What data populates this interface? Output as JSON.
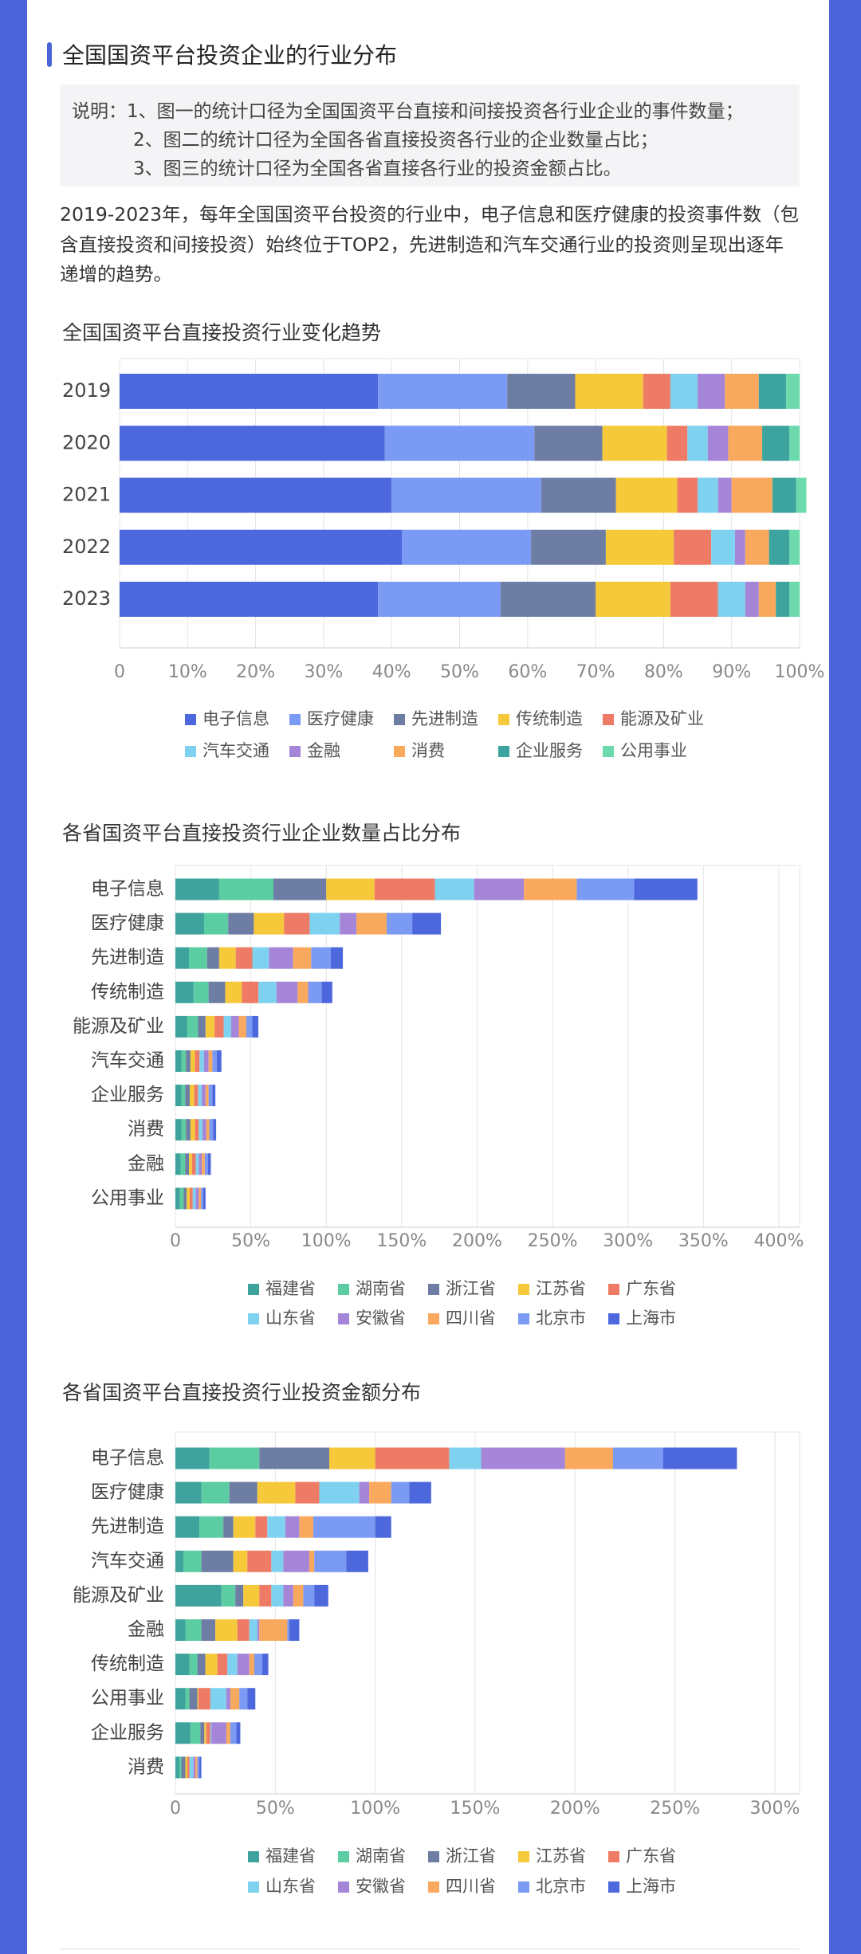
{
  "header": {
    "title": "全国国资平台投资企业的行业分布"
  },
  "notes": [
    "说明：1、图一的统计口径为全国国资平台直接和间接投资各行业企业的事件数量；",
    "2、图二的统计口径为全国各省直接投资各行业的企业数量占比；",
    "3、图三的统计口径为全国各省直接各行业的投资金额占比。"
  ],
  "paragraph": "2019-2023年，每年全国国资平台投资的行业中，电子信息和医疗健康的投资事件数（包含直接投资和间接投资）始终位于TOP2，先进制造和汽车交通行业的投资则呈现出逐年递增的趋势。",
  "chart_data": [
    {
      "type": "bar",
      "orientation": "horizontal",
      "stacked": true,
      "grid": true,
      "title": "全国国资平台直接投资行业变化趋势",
      "categories": [
        "2019",
        "2020",
        "2021",
        "2022",
        "2023"
      ],
      "series": [
        {
          "name": "电子信息",
          "color": "#4d67dc",
          "values": [
            38,
            39,
            40,
            41.5,
            38
          ]
        },
        {
          "name": "医疗健康",
          "color": "#7b9af4",
          "values": [
            19,
            22,
            22,
            19,
            18
          ]
        },
        {
          "name": "先进制造",
          "color": "#6d7da3",
          "values": [
            10,
            10,
            11,
            11,
            14
          ]
        },
        {
          "name": "传统制造",
          "color": "#f6c93a",
          "values": [
            10,
            9.5,
            9,
            10,
            11
          ]
        },
        {
          "name": "能源及矿业",
          "color": "#ee7b66",
          "values": [
            4,
            3,
            3,
            5.5,
            7
          ]
        },
        {
          "name": "汽车交通",
          "color": "#7fd2ef",
          "values": [
            4,
            3,
            3,
            3.5,
            4
          ]
        },
        {
          "name": "金融",
          "color": "#a585d8",
          "values": [
            4,
            3,
            2,
            1.5,
            2
          ]
        },
        {
          "name": "消费",
          "color": "#f9a95e",
          "values": [
            5,
            5,
            6,
            3.5,
            2.5
          ]
        },
        {
          "name": "企业服务",
          "color": "#3ca39e",
          "values": [
            4,
            4,
            3.5,
            3,
            2
          ]
        },
        {
          "name": "公用事业",
          "color": "#6ddaae",
          "values": [
            2,
            1.5,
            1.5,
            1.5,
            1.5
          ]
        }
      ],
      "xlim": [
        0,
        100
      ],
      "xticks": [
        0,
        {
          "value": 10,
          "label": "10%"
        },
        {
          "value": 20,
          "label": "20%"
        },
        {
          "value": 30,
          "label": "30%"
        },
        {
          "value": 40,
          "label": "40%"
        },
        {
          "value": 50,
          "label": "50%"
        },
        {
          "value": 60,
          "label": "60%"
        },
        {
          "value": 70,
          "label": "70%"
        },
        {
          "value": 80,
          "label": "80%"
        },
        {
          "value": 90,
          "label": "90%"
        },
        {
          "value": 100,
          "label": "100%"
        }
      ]
    },
    {
      "type": "bar",
      "orientation": "horizontal",
      "stacked": true,
      "grid": true,
      "title": "各省国资平台直接投资行业企业数量占比分布",
      "categories": [
        "电子信息",
        "医疗健康",
        "先进制造",
        "传统制造",
        "能源及矿业",
        "汽车交通",
        "企业服务",
        "消费",
        "金融",
        "公用事业"
      ],
      "series": [
        {
          "name": "福建省",
          "color": "#3ea29d",
          "values": [
            29,
            19,
            9,
            12,
            8,
            4,
            4,
            4,
            3.5,
            3
          ]
        },
        {
          "name": "湖南省",
          "color": "#5ccca2",
          "values": [
            36,
            16,
            12,
            10,
            7,
            3,
            2.5,
            3,
            3,
            2.5
          ]
        },
        {
          "name": "浙江省",
          "color": "#6d7da3",
          "values": [
            35,
            17,
            8,
            11,
            5,
            3,
            3,
            3,
            2.5,
            2
          ]
        },
        {
          "name": "江苏省",
          "color": "#f6c93a",
          "values": [
            32,
            20,
            11,
            11,
            6,
            3,
            3,
            3,
            2,
            2
          ]
        },
        {
          "name": "广东省",
          "color": "#ee7b66",
          "values": [
            40,
            17,
            11,
            11,
            6,
            3,
            2.5,
            2.5,
            2.5,
            2
          ]
        },
        {
          "name": "山东省",
          "color": "#7fd2ef",
          "values": [
            26,
            20,
            11,
            12,
            5,
            3,
            2.5,
            2.5,
            2,
            2
          ]
        },
        {
          "name": "安徽省",
          "color": "#a585d8",
          "values": [
            33,
            11,
            16,
            14,
            5,
            3,
            2.5,
            2.5,
            2,
            2
          ]
        },
        {
          "name": "四川省",
          "color": "#f9a95e",
          "values": [
            35,
            20,
            12,
            7,
            5,
            2.5,
            2,
            2,
            2,
            1.5
          ]
        },
        {
          "name": "北京市",
          "color": "#7b9af4",
          "values": [
            38,
            17,
            13,
            9,
            4,
            3,
            2.5,
            2.5,
            2,
            1.5
          ]
        },
        {
          "name": "上海市",
          "color": "#4d67dc",
          "values": [
            42,
            19,
            8,
            7,
            4,
            3,
            2,
            2,
            2,
            1.5
          ]
        }
      ],
      "xlim": [
        0,
        400
      ],
      "xticks": [
        0,
        {
          "value": 50,
          "label": "50%"
        },
        {
          "value": 100,
          "label": "100%"
        },
        {
          "value": 150,
          "label": "150%"
        },
        {
          "value": 200,
          "label": "200%"
        },
        {
          "value": 250,
          "label": "250%"
        },
        {
          "value": 300,
          "label": "300%"
        },
        {
          "value": 350,
          "label": "350%"
        },
        {
          "value": 400,
          "label": "400%"
        }
      ]
    },
    {
      "type": "bar",
      "orientation": "horizontal",
      "stacked": true,
      "grid": true,
      "title": "各省国资平台直接投资行业投资金额分布",
      "categories": [
        "电子信息",
        "医疗健康",
        "先进制造",
        "汽车交通",
        "能源及矿业",
        "金融",
        "传统制造",
        "公用事业",
        "企业服务",
        "消费"
      ],
      "series": [
        {
          "name": "福建省",
          "color": "#3ea29d",
          "values": [
            17,
            13,
            12,
            4,
            23,
            5,
            7,
            5,
            7.5,
            2
          ]
        },
        {
          "name": "湖南省",
          "color": "#5ccca2",
          "values": [
            25,
            14,
            12,
            9,
            7,
            8,
            4,
            2,
            5,
            1
          ]
        },
        {
          "name": "浙江省",
          "color": "#6d7da3",
          "values": [
            35,
            14,
            5,
            16,
            4,
            7,
            4,
            4,
            2,
            2
          ]
        },
        {
          "name": "江苏省",
          "color": "#f6c93a",
          "values": [
            23,
            19,
            11,
            7,
            8,
            11,
            6,
            0.5,
            1,
            1
          ]
        },
        {
          "name": "广东省",
          "color": "#ee7b66",
          "values": [
            37,
            12,
            6,
            12,
            6,
            6,
            5,
            6,
            2,
            1
          ]
        },
        {
          "name": "山东省",
          "color": "#7fd2ef",
          "values": [
            16,
            20,
            9,
            6,
            6,
            4,
            5,
            8,
            0.5,
            2
          ]
        },
        {
          "name": "安徽省",
          "color": "#a585d8",
          "values": [
            42,
            5,
            7,
            13,
            5,
            1,
            6,
            2,
            7.5,
            1
          ]
        },
        {
          "name": "四川省",
          "color": "#f9a95e",
          "values": [
            24,
            11,
            7,
            2.5,
            5,
            14,
            2.5,
            4.5,
            2,
            1
          ]
        },
        {
          "name": "北京市",
          "color": "#7b9af4",
          "values": [
            25,
            9,
            31,
            16,
            5.5,
            1,
            4,
            4,
            3,
            1
          ]
        },
        {
          "name": "上海市",
          "color": "#4d67dc",
          "values": [
            37,
            11,
            8,
            11,
            7,
            5,
            3,
            4,
            2,
            1
          ]
        }
      ],
      "xlim": [
        0,
        300
      ],
      "xticks": [
        0,
        {
          "value": 50,
          "label": "50%"
        },
        {
          "value": 100,
          "label": "100%"
        },
        {
          "value": 150,
          "label": "150%"
        },
        {
          "value": 200,
          "label": "200%"
        },
        {
          "value": 250,
          "label": "250%"
        },
        {
          "value": 300,
          "label": "300%"
        }
      ]
    }
  ]
}
